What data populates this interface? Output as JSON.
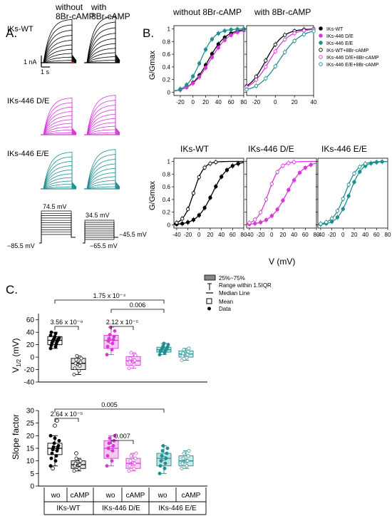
{
  "colors": {
    "wt": "#000000",
    "de": "#d63ad6",
    "ee": "#1f8f8f",
    "de_light": "#e9a6ea",
    "ee_light": "#8fcaca",
    "wt_light": "#9a9a9a"
  },
  "panel_a": {
    "label": "A.",
    "col_titles": [
      [
        "without",
        "8Br-cAMP"
      ],
      [
        "with",
        "8Br-cAMP"
      ]
    ],
    "rows": [
      "IKs-WT",
      "IKs-446 D/E",
      "IKs-446 E/E"
    ],
    "scale_current": "1 nA",
    "scale_time": "1 s",
    "protocol_left": {
      "top": "74.5 mV",
      "bottom": "−85.5 mV"
    },
    "protocol_right": {
      "top": "34.5 mV",
      "tail": "−45.5 mV",
      "bottom": "−65.5 mV"
    }
  },
  "panel_b": {
    "label": "B.",
    "ylabel": "G/Gmax",
    "xlabel": "V (mV)",
    "top_titles": [
      "without 8Br-cAMP",
      "with 8Br-cAMP"
    ],
    "bottom_titles": [
      "IKs-WT",
      "IKs-446 D/E",
      "IKs-446 E/E"
    ],
    "yticks": [
      "0",
      "0.2",
      "0.4",
      "0.6",
      "0.8",
      "1"
    ],
    "xticks_top": [
      "-20",
      "0",
      "20",
      "40",
      "60",
      "80"
    ],
    "xticks_top2": [
      "-20",
      "0",
      "20",
      "40"
    ],
    "xticks_bottom": [
      "-40",
      "-20",
      "0",
      "20",
      "40",
      "60",
      "80"
    ],
    "legend": [
      {
        "label": "IKs-WT",
        "key": "wt",
        "filled": true
      },
      {
        "label": "IKs-446 D/E",
        "key": "de",
        "filled": true
      },
      {
        "label": "IKs-446 E/E",
        "key": "ee",
        "filled": true
      },
      {
        "label": "IKs-WT+8Br-cAMP",
        "key": "wt",
        "filled": false
      },
      {
        "label": "IKs-446 D/E+8Br-cAMP",
        "key": "de",
        "filled": false
      },
      {
        "label": "IKs-446 E/E+8Br-cAMP",
        "key": "ee",
        "filled": false
      }
    ]
  },
  "chart_data": [
    {
      "type": "line",
      "ylabel": "G/Gmax",
      "title": "without 8Br-cAMP",
      "xlim": [
        -30,
        80
      ],
      "ylim": [
        -0.05,
        1.05
      ],
      "series": [
        {
          "name": "IKs-WT",
          "v_half": 24,
          "slope": 14,
          "x": [
            -20,
            -10,
            0,
            10,
            20,
            30,
            40,
            50,
            60,
            70,
            80
          ]
        },
        {
          "name": "IKs-446 D/E",
          "v_half": 27,
          "slope": 15,
          "x": [
            -20,
            -10,
            0,
            10,
            20,
            30,
            40,
            50,
            60,
            70,
            80
          ]
        },
        {
          "name": "IKs-446 E/E",
          "v_half": 12,
          "slope": 11,
          "x": [
            -20,
            -10,
            0,
            10,
            20,
            30,
            40,
            50,
            60,
            70,
            80
          ]
        }
      ]
    },
    {
      "type": "line",
      "ylabel": "G/Gmax",
      "title": "with 8Br-cAMP",
      "xlim": [
        -30,
        40
      ],
      "ylim": [
        -0.05,
        1.05
      ],
      "series": [
        {
          "name": "IKs-WT+8Br-cAMP",
          "v_half": -10,
          "slope": 9,
          "x": [
            -30,
            -20,
            -10,
            0,
            10,
            20,
            30,
            40
          ]
        },
        {
          "name": "IKs-446 D/E+8Br-cAMP",
          "v_half": -6,
          "slope": 10,
          "x": [
            -30,
            -20,
            -10,
            0,
            10,
            20,
            30,
            40
          ]
        },
        {
          "name": "IKs-446 E/E+8Br-cAMP",
          "v_half": 4,
          "slope": 11,
          "x": [
            -30,
            -20,
            -10,
            0,
            10,
            20,
            30,
            40
          ]
        }
      ]
    },
    {
      "type": "line",
      "title": "IKs-WT",
      "xlabel": "V (mV)",
      "ylabel": "G/Gmax",
      "xlim": [
        -45,
        80
      ],
      "ylim": [
        -0.05,
        1.05
      ],
      "series": [
        {
          "name": "IKs-WT",
          "v_half": 24,
          "slope": 14,
          "x": [
            -40,
            -30,
            -20,
            -10,
            0,
            10,
            20,
            30,
            40,
            50,
            60,
            70
          ]
        },
        {
          "name": "IKs-WT+8Br-cAMP",
          "v_half": -10,
          "slope": 9,
          "x": [
            -40,
            -30,
            -20,
            -10,
            0,
            10,
            20,
            30
          ]
        }
      ]
    },
    {
      "type": "line",
      "title": "IKs-446 D/E",
      "xlabel": "V (mV)",
      "xlim": [
        -45,
        80
      ],
      "ylim": [
        -0.05,
        1.05
      ],
      "series": [
        {
          "name": "IKs-446 D/E",
          "v_half": 27,
          "slope": 15,
          "x": [
            -40,
            -30,
            -20,
            -10,
            0,
            10,
            20,
            30,
            40,
            50,
            60,
            70
          ]
        },
        {
          "name": "IKs-446 D/E+8Br-cAMP",
          "v_half": -6,
          "slope": 10,
          "x": [
            -40,
            -30,
            -20,
            -10,
            0,
            10,
            20,
            30,
            40
          ]
        }
      ]
    },
    {
      "type": "line",
      "title": "IKs-446 E/E",
      "xlabel": "V (mV)",
      "xlim": [
        -45,
        80
      ],
      "ylim": [
        -0.05,
        1.05
      ],
      "series": [
        {
          "name": "IKs-446 E/E",
          "v_half": 12,
          "slope": 11,
          "x": [
            -40,
            -30,
            -20,
            -10,
            0,
            10,
            20,
            30,
            40,
            50,
            60,
            70
          ]
        },
        {
          "name": "IKs-446 E/E+8Br-cAMP",
          "v_half": 4,
          "slope": 11,
          "x": [
            -40,
            -30,
            -20,
            -10,
            0,
            10,
            20,
            30,
            40
          ]
        }
      ]
    },
    {
      "type": "box",
      "ylabel": "V1/2 (mV)",
      "ylim": [
        -40,
        70
      ],
      "yticks": [
        -40,
        -20,
        0,
        20,
        40,
        60
      ],
      "categories": [
        "wo",
        "cAMP",
        "wo",
        "cAMP",
        "wo",
        "cAMP"
      ],
      "groups": [
        "IKs-WT",
        "IKs-446 D/E",
        "IKs-446 E/E"
      ],
      "boxes": [
        {
          "q1": 20,
          "median": 27,
          "q3": 33,
          "mean": 27,
          "wmin": 14,
          "wmax": 40,
          "points": [
            14,
            17,
            19,
            21,
            23,
            25,
            26,
            27,
            28,
            29,
            30,
            31,
            33,
            35,
            38,
            40
          ]
        },
        {
          "q1": -20,
          "median": -10,
          "q3": -2,
          "mean": -11,
          "wmin": -28,
          "wmax": 2,
          "points": [
            -28,
            -22,
            -18,
            -14,
            -10,
            -8,
            -4,
            -2,
            2
          ]
        },
        {
          "q1": 14,
          "median": 27,
          "q3": 35,
          "mean": 25,
          "wmin": 4,
          "wmax": 48,
          "points": [
            4,
            12,
            17,
            22,
            26,
            28,
            30,
            33,
            36,
            42,
            48
          ]
        },
        {
          "q1": -13,
          "median": -6,
          "q3": 1,
          "mean": -6,
          "wmin": -18,
          "wmax": 7,
          "points": [
            -18,
            -12,
            -8,
            -5,
            -2,
            3,
            7
          ]
        },
        {
          "q1": 8,
          "median": 12,
          "q3": 16,
          "mean": 12,
          "wmin": 4,
          "wmax": 22,
          "points": [
            4,
            7,
            9,
            10,
            11,
            12,
            13,
            14,
            15,
            16,
            18,
            20,
            22
          ]
        },
        {
          "q1": 0,
          "median": 5,
          "q3": 10,
          "mean": 5,
          "wmin": -5,
          "wmax": 14,
          "points": [
            -5,
            -1,
            2,
            4,
            6,
            9,
            12,
            14
          ]
        }
      ],
      "brackets": [
        {
          "from": 0,
          "to": 4,
          "label": "1.75 x 10⁻⁴"
        },
        {
          "from": 2,
          "to": 4,
          "label": "0.006"
        },
        {
          "from": 0,
          "to": 1,
          "label": "3.56 x 10⁻⁹"
        },
        {
          "from": 2,
          "to": 3,
          "label": "2.12 x 10⁻⁵"
        }
      ]
    },
    {
      "type": "box",
      "ylabel": "Slope factor",
      "ylim": [
        0,
        30
      ],
      "yticks": [
        0,
        5,
        10,
        15,
        20,
        25,
        30
      ],
      "categories": [
        "wo",
        "cAMP",
        "wo",
        "cAMP",
        "wo",
        "cAMP"
      ],
      "groups": [
        "IKs-WT",
        "IKs-446 D/E",
        "IKs-446 E/E"
      ],
      "boxes": [
        {
          "q1": 12.5,
          "median": 15,
          "q3": 17,
          "mean": 15,
          "wmin": 8,
          "wmax": 20,
          "points": [
            8,
            10,
            11,
            12,
            13,
            14,
            14.5,
            15,
            15.5,
            16,
            17,
            18,
            19,
            20
          ],
          "outliers": [
            7,
            24,
            26
          ]
        },
        {
          "q1": 7,
          "median": 8.5,
          "q3": 10,
          "mean": 8.5,
          "wmin": 6,
          "wmax": 11,
          "points": [
            6,
            7,
            8,
            8.5,
            9,
            10,
            11
          ],
          "outliers": [
            13
          ]
        },
        {
          "q1": 11,
          "median": 15,
          "q3": 18,
          "mean": 15,
          "wmin": 8,
          "wmax": 20,
          "points": [
            8,
            10,
            12,
            14,
            15,
            16,
            17,
            18,
            19,
            20
          ]
        },
        {
          "q1": 7,
          "median": 9,
          "q3": 11,
          "mean": 9,
          "wmin": 6,
          "wmax": 13,
          "points": [
            6,
            7,
            8,
            9,
            10,
            11,
            12,
            13
          ]
        },
        {
          "q1": 8,
          "median": 11,
          "q3": 13,
          "mean": 11,
          "wmin": 5,
          "wmax": 16,
          "points": [
            5,
            7,
            8,
            9,
            10,
            11,
            12,
            13,
            14,
            15,
            16
          ]
        },
        {
          "q1": 8,
          "median": 10,
          "q3": 12,
          "mean": 10,
          "wmin": 7,
          "wmax": 14,
          "points": [
            7,
            8,
            9,
            10,
            11,
            12,
            13,
            14
          ]
        }
      ],
      "brackets": [
        {
          "from": 0,
          "to": 4,
          "label": "0.005"
        },
        {
          "from": 0,
          "to": 1,
          "label": "2.64 x 10⁻⁵"
        },
        {
          "from": 2,
          "to": 3,
          "label": "0.007"
        }
      ]
    }
  ],
  "panel_c": {
    "label": "C.",
    "box_legend": [
      "25%~75%",
      "Range within 1.5IQR",
      "Median Line",
      "Mean",
      "Data"
    ],
    "ylabel_v_main": "V",
    "ylabel_v_sub": "1/2",
    "ylabel_v_unit": " (mV)"
  }
}
